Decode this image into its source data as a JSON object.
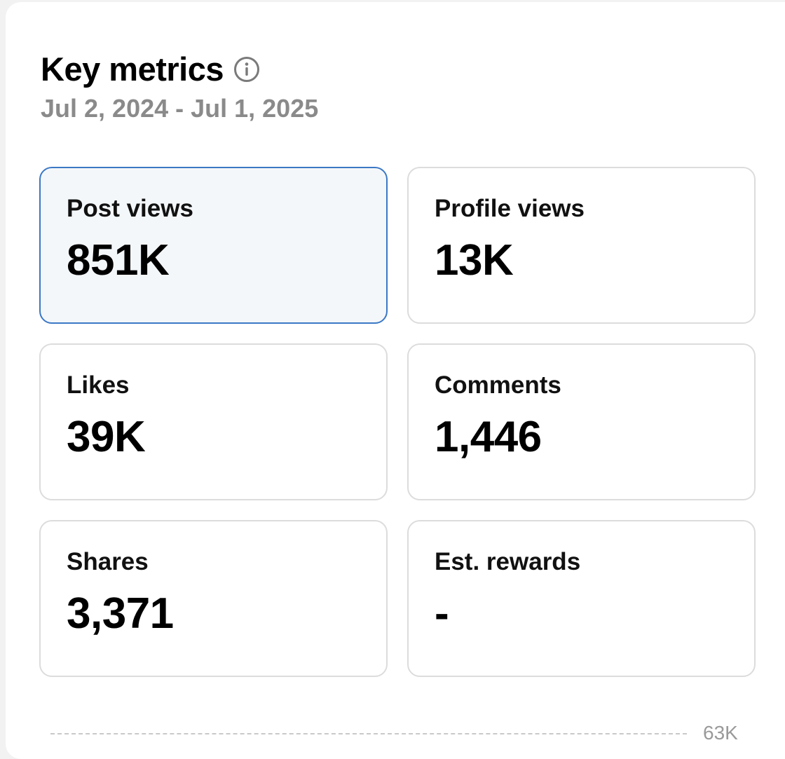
{
  "header": {
    "title": "Key metrics",
    "info_icon": "info-circle-icon",
    "date_range": "Jul 2, 2024 - Jul 1, 2025"
  },
  "metrics": [
    {
      "label": "Post views",
      "value": "851K",
      "selected": true
    },
    {
      "label": "Profile views",
      "value": "13K",
      "selected": false
    },
    {
      "label": "Likes",
      "value": "39K",
      "selected": false
    },
    {
      "label": "Comments",
      "value": "1,446",
      "selected": false
    },
    {
      "label": "Shares",
      "value": "3,371",
      "selected": false
    },
    {
      "label": "Est. rewards",
      "value": "-",
      "selected": false
    }
  ],
  "chart": {
    "max_label": "63K"
  },
  "colors": {
    "selected_border": "#3b78c5",
    "selected_background": "#f4f7fa",
    "tile_border": "#dcdcdc",
    "muted_text": "#8a8a8a"
  }
}
